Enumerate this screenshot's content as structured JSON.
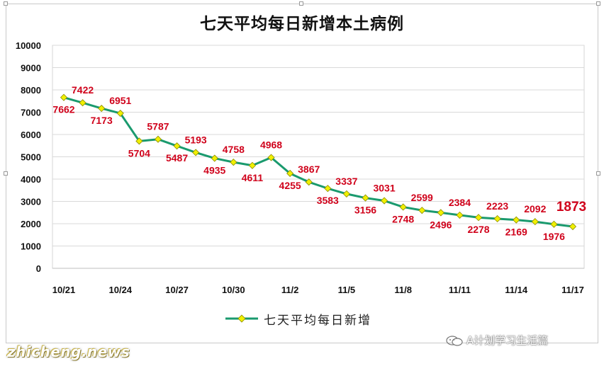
{
  "watermarks": {
    "account": "A计划学习生活篇",
    "site": "zhicheng.news"
  },
  "chart_data": {
    "type": "line",
    "title": "七天平均每日新增本土病例",
    "xlabel": "",
    "ylabel": "",
    "ylim": [
      0,
      10000
    ],
    "yticks": [
      0,
      1000,
      2000,
      3000,
      4000,
      5000,
      6000,
      7000,
      8000,
      9000,
      10000
    ],
    "x": [
      "10/21",
      "10/22",
      "10/23",
      "10/24",
      "10/25",
      "10/26",
      "10/27",
      "10/28",
      "10/29",
      "10/30",
      "10/31",
      "11/1",
      "11/2",
      "11/3",
      "11/4",
      "11/5",
      "11/6",
      "11/7",
      "11/8",
      "11/9",
      "11/10",
      "11/11",
      "11/12",
      "11/13",
      "11/14",
      "11/15",
      "11/16",
      "11/17"
    ],
    "xtick_labels": [
      "10/21",
      "10/24",
      "10/27",
      "10/30",
      "11/2",
      "11/5",
      "11/8",
      "11/11",
      "11/14",
      "11/17"
    ],
    "series": [
      {
        "name": "七天平均每日新增",
        "color": "#1a9a6e",
        "marker_color": "#f0f000",
        "values": [
          7662,
          7422,
          7173,
          6951,
          5704,
          5787,
          5487,
          5193,
          4935,
          4758,
          4611,
          4968,
          4255,
          3867,
          3583,
          3337,
          3156,
          3031,
          2748,
          2599,
          2496,
          2384,
          2278,
          2223,
          2169,
          2092,
          1976,
          1873
        ]
      }
    ],
    "label_color": "#d0021b",
    "grid": true,
    "legend": "bottom"
  }
}
